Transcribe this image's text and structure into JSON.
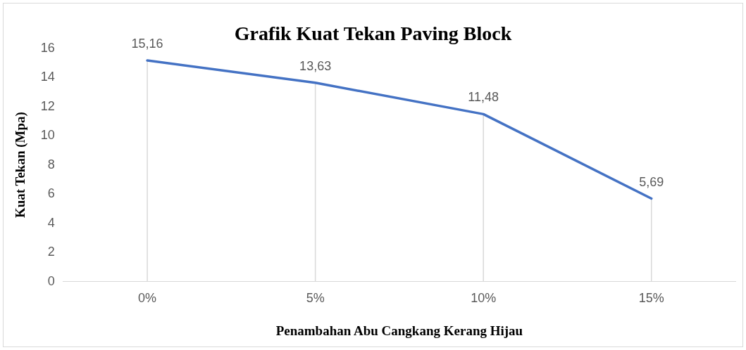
{
  "chart_data": {
    "type": "line",
    "title": "Grafik Kuat Tekan Paving Block",
    "xlabel": "Penambahan Abu Cangkang Kerang Hijau",
    "ylabel": "Kuat Tekan (Mpa)",
    "categories": [
      "0%",
      "5%",
      "10%",
      "15%"
    ],
    "series": [
      {
        "color": "#4472c4",
        "values": [
          15.16,
          13.63,
          11.48,
          5.69
        ],
        "value_labels": [
          "15,16",
          "13,63",
          "11,48",
          "5,69"
        ]
      }
    ],
    "ylim": [
      0,
      16
    ],
    "yticks": [
      0,
      2,
      4,
      6,
      8,
      10,
      12,
      14,
      16
    ],
    "grid": "x",
    "legend": false,
    "marker": "none",
    "line_style": "solid"
  }
}
